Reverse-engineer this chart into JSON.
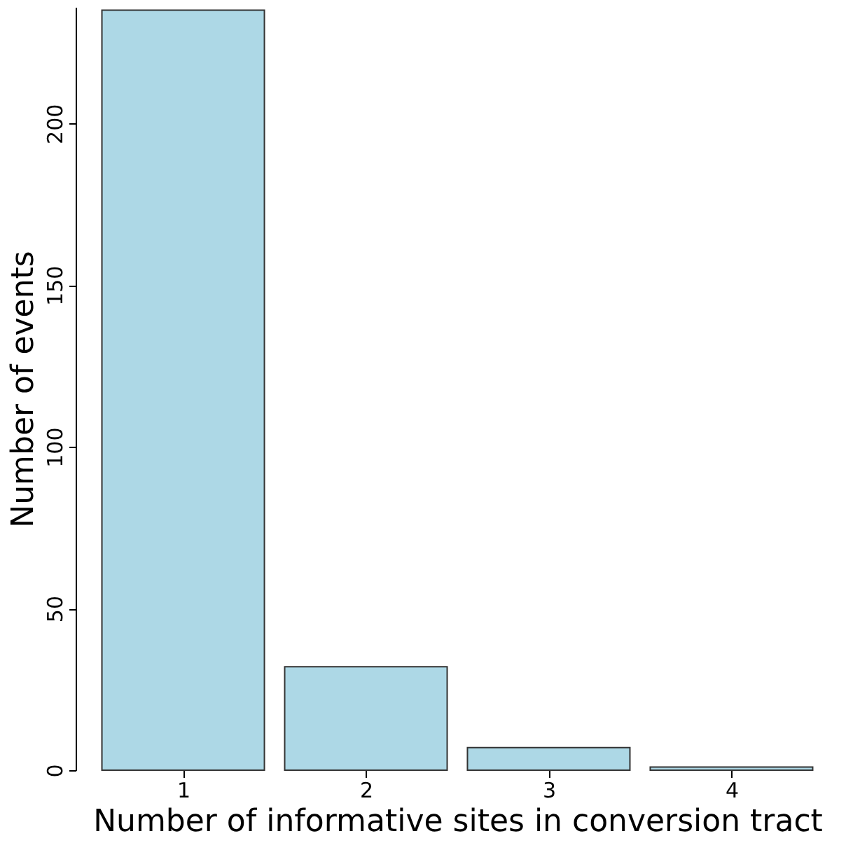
{
  "chart_data": {
    "type": "bar",
    "xlabel": "Number of informative sites in conversion tract",
    "ylabel": "Number of events",
    "categories": [
      "1",
      "2",
      "3",
      "4"
    ],
    "series": [
      {
        "color": "#add8e6",
        "values": [
          235,
          32,
          7,
          1
        ]
      }
    ],
    "ylim": [
      0,
      236
    ],
    "yticks": [
      0,
      50,
      100,
      150,
      200
    ],
    "grid": false,
    "legend": false
  }
}
